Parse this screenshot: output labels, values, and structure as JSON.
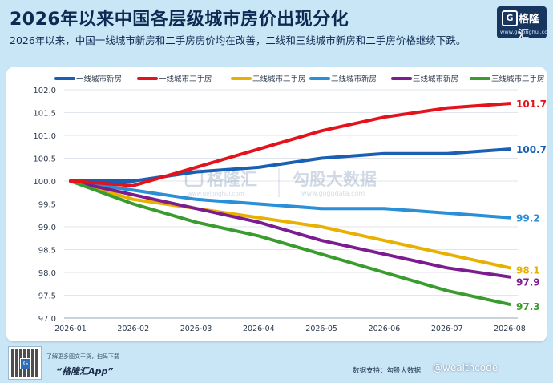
{
  "header": {
    "title": "2026年以来中国各层级城市房价出现分化",
    "subtitle": "2026年以来，中国一线城市新房和二手房房价均在改善，二线和三线城市新房和二手房价格继续下跌。"
  },
  "logo": {
    "name": "格隆汇",
    "glyph": "G",
    "site": "www.gelonghui.com"
  },
  "watermark": {
    "text_left": "格隆汇",
    "site_left": "www.gelonghui.com",
    "text_right": "勾股大数据",
    "site_right": "www.gogudata.com"
  },
  "footer": {
    "qr_hint": "了解更多图文干货，扫码下载",
    "app_name": "“格隆汇App”",
    "source": "数据支持：勾股大数据",
    "weibo": "@wealthcode"
  },
  "chart_data": {
    "type": "line",
    "x": [
      "2026-01",
      "2026-02",
      "2026-03",
      "2026-04",
      "2026-05",
      "2026-06",
      "2026-07",
      "2026-08"
    ],
    "ylim": [
      97.0,
      102.0
    ],
    "yticks": [
      "97.0",
      "97.5",
      "98.0",
      "98.5",
      "99.0",
      "99.5",
      "100.0",
      "100.5",
      "101.0",
      "101.5",
      "102.0"
    ],
    "grid": true,
    "legend": "top",
    "series": [
      {
        "name": "一线城市新房",
        "color": "#1a5fb4",
        "values": [
          100.0,
          100.0,
          100.2,
          100.3,
          100.5,
          100.6,
          100.6,
          100.7
        ],
        "end_label": "100.7"
      },
      {
        "name": "一线城市二手房",
        "color": "#e3121b",
        "values": [
          100.0,
          99.9,
          100.3,
          100.7,
          101.1,
          101.4,
          101.6,
          101.7
        ],
        "end_label": "101.7"
      },
      {
        "name": "二线城市二手房",
        "color": "#e8b000",
        "values": [
          100.0,
          99.6,
          99.4,
          99.2,
          99.0,
          98.7,
          98.4,
          98.1
        ],
        "end_label": "98.1"
      },
      {
        "name": "二线城市新房",
        "color": "#2a8fd6",
        "values": [
          100.0,
          99.8,
          99.6,
          99.5,
          99.4,
          99.4,
          99.3,
          99.2
        ],
        "end_label": "99.2"
      },
      {
        "name": "三线城市新房",
        "color": "#7b1d8e",
        "values": [
          100.0,
          99.7,
          99.4,
          99.1,
          98.7,
          98.4,
          98.1,
          97.9
        ],
        "end_label": "97.9"
      },
      {
        "name": "三线城市二手房",
        "color": "#3a9b2e",
        "values": [
          100.0,
          99.5,
          99.1,
          98.8,
          98.4,
          98.0,
          97.6,
          97.3
        ],
        "end_label": "97.3"
      }
    ]
  }
}
